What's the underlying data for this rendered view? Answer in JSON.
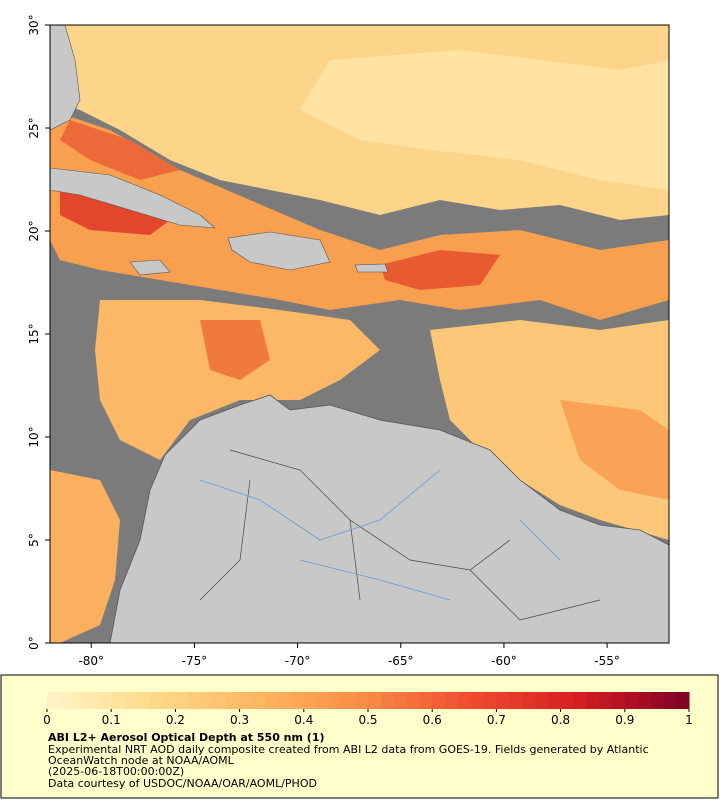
{
  "map": {
    "xlim": [
      -82,
      -52
    ],
    "ylim": [
      0,
      30
    ],
    "xticks": [
      {
        "value": -80,
        "label": "-80°"
      },
      {
        "value": -75,
        "label": "-75°"
      },
      {
        "value": -70,
        "label": "-70°"
      },
      {
        "value": -65,
        "label": "-65°"
      },
      {
        "value": -60,
        "label": "-60°"
      },
      {
        "value": -55,
        "label": "-55°"
      }
    ],
    "yticks": [
      {
        "value": 0,
        "label": "0°"
      },
      {
        "value": 5,
        "label": "5°"
      },
      {
        "value": 10,
        "label": "10°"
      },
      {
        "value": 15,
        "label": "15°"
      },
      {
        "value": 20,
        "label": "20°"
      },
      {
        "value": 25,
        "label": "25°"
      },
      {
        "value": 30,
        "label": "30°"
      }
    ]
  },
  "colorbar": {
    "lim": [
      0,
      1
    ],
    "ticks": [
      0,
      0.1,
      0.2,
      0.3,
      0.4,
      0.5,
      0.6,
      0.7,
      0.8,
      0.9,
      1
    ],
    "colors": [
      "#fff5c8",
      "#fed98a",
      "#fdb560",
      "#f98a45",
      "#ef4a2e",
      "#d41c22",
      "#7d0025"
    ]
  },
  "caption": {
    "title": "ABI L2+ Aerosol Optical Depth at 550 nm (1)",
    "lines": [
      "Experimental NRT AOD daily composite created from ABI L2 data from GOES-19. Fields generated by Atlantic",
      "OceanWatch node at NOAA/AOML",
      "(2025-06-18T00:00:00Z)",
      "Data courtesy of USDOC/NOAA/OAR/AOML/PHOD"
    ]
  }
}
